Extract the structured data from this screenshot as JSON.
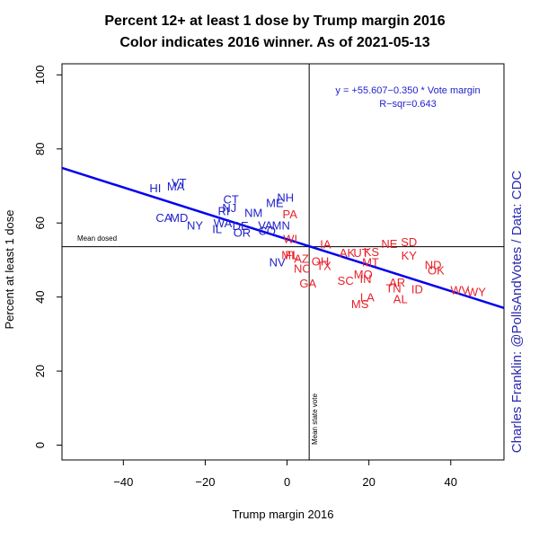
{
  "chart_data": {
    "type": "scatter",
    "title": "Percent 12+ at least 1 dose by Trump margin 2016",
    "subtitle": "Color indicates 2016 winner. As of 2021-05-13",
    "xlabel": "Trump margin 2016",
    "ylabel": "Percent at least 1 dose",
    "xlim": [
      -55,
      53
    ],
    "ylim": [
      -4,
      103
    ],
    "xticks": [
      -40,
      -20,
      0,
      20,
      40
    ],
    "yticks": [
      0,
      20,
      40,
      60,
      80,
      100
    ],
    "colors": {
      "dem": "#2222cc",
      "rep": "#e8222a",
      "fit": "#0000ee",
      "ref": "#000000"
    },
    "fit_line": {
      "intercept": 55.607,
      "slope": -0.35,
      "color": "#0000ee"
    },
    "equation": "y = +55.607−0.350 * Vote margin",
    "r_squared": "R−sqr=0.643",
    "mean_dosed": {
      "value": 53.6,
      "label": "Mean dosed"
    },
    "mean_state_vote": {
      "value": 5.4,
      "label": "Mean state vote"
    },
    "credit": "Charles Franklin: @PollsAndVotes / Data: CDC",
    "points": [
      {
        "label": "VT",
        "x": -26.4,
        "y": 71,
        "party": "dem"
      },
      {
        "label": "MA",
        "x": -27.2,
        "y": 70,
        "party": "dem"
      },
      {
        "label": "HI",
        "x": -32.2,
        "y": 69.5,
        "party": "dem"
      },
      {
        "label": "CT",
        "x": -13.7,
        "y": 66.5,
        "party": "dem"
      },
      {
        "label": "RI",
        "x": -15.5,
        "y": 63.3,
        "party": "dem"
      },
      {
        "label": "NJ",
        "x": -14.1,
        "y": 64.2,
        "party": "dem"
      },
      {
        "label": "NH",
        "x": -0.4,
        "y": 67,
        "party": "dem"
      },
      {
        "label": "ME",
        "x": -3,
        "y": 65.5,
        "party": "dem"
      },
      {
        "label": "NM",
        "x": -8.2,
        "y": 62.8,
        "party": "dem"
      },
      {
        "label": "CA",
        "x": -30.1,
        "y": 61.5,
        "party": "dem"
      },
      {
        "label": "MD",
        "x": -26.4,
        "y": 61.5,
        "party": "dem"
      },
      {
        "label": "NY",
        "x": -22.5,
        "y": 59.5,
        "party": "dem"
      },
      {
        "label": "WA",
        "x": -15.7,
        "y": 60,
        "party": "dem"
      },
      {
        "label": "DE",
        "x": -11.4,
        "y": 59.3,
        "party": "dem"
      },
      {
        "label": "IL",
        "x": -17.1,
        "y": 58.5,
        "party": "dem"
      },
      {
        "label": "OR",
        "x": -11,
        "y": 57.5,
        "party": "dem"
      },
      {
        "label": "VA",
        "x": -5.3,
        "y": 59.5,
        "party": "dem"
      },
      {
        "label": "MN",
        "x": -1.5,
        "y": 59.5,
        "party": "dem"
      },
      {
        "label": "CO",
        "x": -4.9,
        "y": 58,
        "party": "dem"
      },
      {
        "label": "NV",
        "x": -2.4,
        "y": 49.5,
        "party": "dem"
      },
      {
        "label": "PA",
        "x": 0.7,
        "y": 62.5,
        "party": "rep"
      },
      {
        "label": "WI",
        "x": 0.8,
        "y": 55.8,
        "party": "rep"
      },
      {
        "label": "MI",
        "x": 0.2,
        "y": 51.5,
        "party": "rep"
      },
      {
        "label": "FL",
        "x": 1.2,
        "y": 51.5,
        "party": "rep"
      },
      {
        "label": "AZ",
        "x": 3.5,
        "y": 50.5,
        "party": "rep"
      },
      {
        "label": "NC",
        "x": 3.7,
        "y": 47.8,
        "party": "rep"
      },
      {
        "label": "OH",
        "x": 8.1,
        "y": 49.8,
        "party": "rep"
      },
      {
        "label": "TX",
        "x": 9,
        "y": 48.5,
        "party": "rep"
      },
      {
        "label": "GA",
        "x": 5.1,
        "y": 43.8,
        "party": "rep"
      },
      {
        "label": "IA",
        "x": 9.4,
        "y": 54.3,
        "party": "rep"
      },
      {
        "label": "AK",
        "x": 14.7,
        "y": 52,
        "party": "rep"
      },
      {
        "label": "UT",
        "x": 18.1,
        "y": 52,
        "party": "rep"
      },
      {
        "label": "KS",
        "x": 20.6,
        "y": 52.3,
        "party": "rep"
      },
      {
        "label": "MT",
        "x": 20.4,
        "y": 49.5,
        "party": "rep"
      },
      {
        "label": "MO",
        "x": 18.6,
        "y": 46.2,
        "party": "rep"
      },
      {
        "label": "SC",
        "x": 14.3,
        "y": 44.5,
        "party": "rep"
      },
      {
        "label": "IN",
        "x": 19.2,
        "y": 45,
        "party": "rep"
      },
      {
        "label": "NE",
        "x": 25,
        "y": 54.5,
        "party": "rep"
      },
      {
        "label": "SD",
        "x": 29.8,
        "y": 55,
        "party": "rep"
      },
      {
        "label": "KY",
        "x": 29.8,
        "y": 51.3,
        "party": "rep"
      },
      {
        "label": "ND",
        "x": 35.7,
        "y": 48.8,
        "party": "rep"
      },
      {
        "label": "OK",
        "x": 36.4,
        "y": 47.3,
        "party": "rep"
      },
      {
        "label": "AR",
        "x": 26.9,
        "y": 44,
        "party": "rep"
      },
      {
        "label": "TN",
        "x": 26,
        "y": 42.5,
        "party": "rep"
      },
      {
        "label": "ID",
        "x": 31.8,
        "y": 42.2,
        "party": "rep"
      },
      {
        "label": "AL",
        "x": 27.7,
        "y": 39.5,
        "party": "rep"
      },
      {
        "label": "LA",
        "x": 19.6,
        "y": 40,
        "party": "rep"
      },
      {
        "label": "MS",
        "x": 17.8,
        "y": 38.2,
        "party": "rep"
      },
      {
        "label": "WV",
        "x": 42.2,
        "y": 42,
        "party": "rep"
      },
      {
        "label": "WY",
        "x": 46.3,
        "y": 41.5,
        "party": "rep"
      }
    ]
  }
}
